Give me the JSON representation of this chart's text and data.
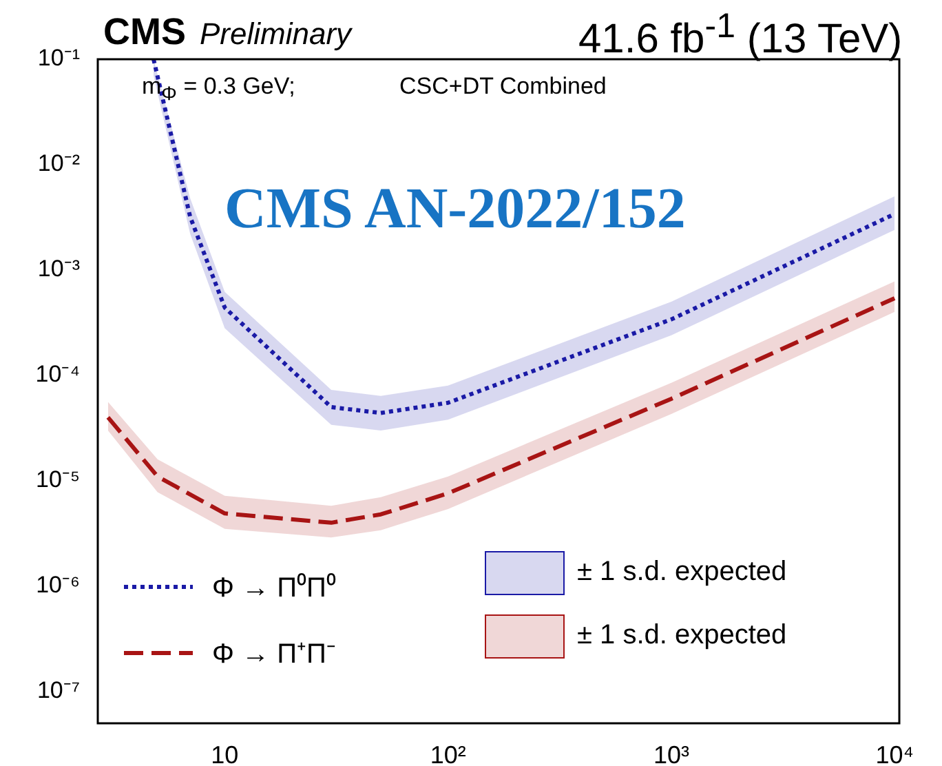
{
  "chart_data": {
    "type": "line",
    "title": "CMS",
    "subtitle": "Preliminary",
    "annotations": [
      "41.6 fb$^{-1}$ (13 TeV)",
      "m$_{Φ}$ = 0.3 GeV;",
      "CSC+DT Combined",
      "CMS AN-2022/152",
      "± 1 s.d. expected",
      "± 1 s.d. expected"
    ],
    "log": "xy",
    "grid": false,
    "marker": "none",
    "legend": "bottom left",
    "xlim": [
      2.7,
      10500
    ],
    "xticks": [
      10,
      {
        "value": 100,
        "label": "10²"
      },
      {
        "value": 1000,
        "label": "10³"
      },
      {
        "value": 10000,
        "label": "10⁴"
      }
    ],
    "ylim": [
      5e-08,
      0.1
    ],
    "yticks": [
      {
        "value": 1e-07,
        "label": "10⁻⁷"
      },
      {
        "value": 1e-06,
        "label": "10⁻⁶"
      },
      {
        "value": 1e-05,
        "label": "10⁻⁵"
      },
      {
        "value": 0.0001,
        "label": "10⁻⁴"
      },
      {
        "value": 0.001,
        "label": "10⁻³"
      },
      {
        "value": 0.01,
        "label": "10⁻²"
      },
      {
        "value": 0.1,
        "label": "10⁻¹"
      }
    ],
    "series": [
      {
        "name": "Φ → Π⁰Π⁰",
        "color": "#1a1aa6",
        "line_style": "dotted",
        "x": [
          4.8,
          7,
          10,
          30,
          50,
          100,
          1000,
          10000
        ],
        "values": [
          0.1,
          0.0032,
          0.00044,
          5e-05,
          4.4e-05,
          5.5e-05,
          0.00034,
          0.0034
        ],
        "lower": [
          0.07,
          0.0022,
          0.00028,
          3.4e-05,
          3e-05,
          3.8e-05,
          0.00024,
          0.0024
        ],
        "upper": [
          0.1,
          0.0048,
          0.00062,
          7.3e-05,
          6.4e-05,
          8e-05,
          0.0005,
          0.005
        ]
      },
      {
        "name": "Φ → Π⁺Π⁻",
        "color": "#a81414",
        "line_style": "dashed",
        "x": [
          3,
          5,
          10,
          30,
          50,
          100,
          1000,
          10000
        ],
        "values": [
          4e-05,
          1.1e-05,
          4.9e-06,
          4e-06,
          4.8e-06,
          7.6e-06,
          6e-05,
          0.00054
        ],
        "lower": [
          3e-05,
          7.8e-06,
          3.5e-06,
          2.9e-06,
          3.4e-06,
          5.4e-06,
          4.3e-05,
          0.0004
        ],
        "upper": [
          5.6e-05,
          1.6e-05,
          7.2e-06,
          5.8e-06,
          7e-06,
          1.1e-05,
          8.5e-05,
          0.00078
        ]
      }
    ]
  }
}
